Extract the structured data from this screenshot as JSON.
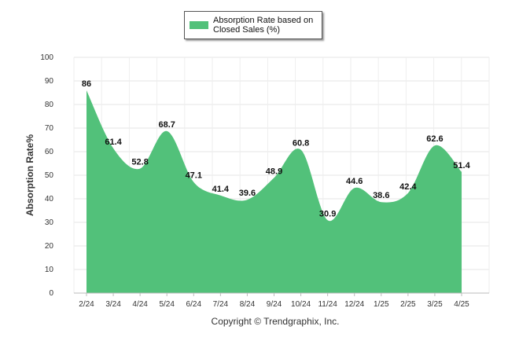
{
  "chart_data": {
    "type": "area",
    "categories": [
      "2/24",
      "3/24",
      "4/24",
      "5/24",
      "6/24",
      "7/24",
      "8/24",
      "9/24",
      "10/24",
      "11/24",
      "12/24",
      "1/25",
      "2/25",
      "3/25",
      "4/25"
    ],
    "series": [
      {
        "name": "Absorption Rate based on\nClosed Sales (%)",
        "values": [
          86,
          61.4,
          52.8,
          68.7,
          47.1,
          41.4,
          39.6,
          48.9,
          60.8,
          30.9,
          44.6,
          38.6,
          42.4,
          62.6,
          51.4
        ]
      }
    ],
    "ylabel": "Absorption Rate%",
    "xlabel": "",
    "ylim": [
      0,
      100
    ],
    "yticks": [
      0,
      10,
      20,
      30,
      40,
      50,
      60,
      70,
      80,
      90,
      100
    ],
    "grid": true,
    "legend": "top-center",
    "color": "#52c17a"
  },
  "copyright": "Copyright © Trendgraphix, Inc."
}
